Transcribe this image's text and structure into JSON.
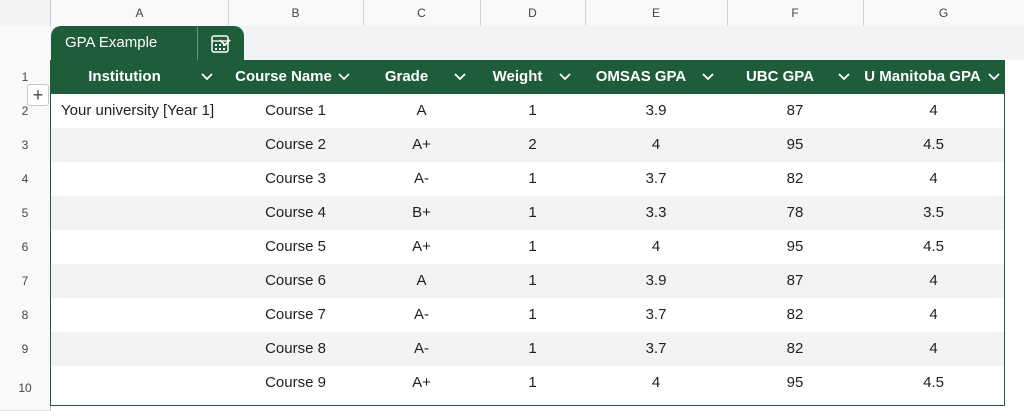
{
  "columns": [
    "A",
    "B",
    "C",
    "D",
    "E",
    "F",
    "G"
  ],
  "table": {
    "name": "GPA Example",
    "headers": [
      "Institution",
      "Course Name",
      "Grade",
      "Weight",
      "OMSAS GPA",
      "UBC GPA",
      "U Manitoba GPA"
    ],
    "rows": [
      [
        "Your university [Year 1]",
        "Course 1",
        "A",
        "1",
        "3.9",
        "87",
        "4"
      ],
      [
        "",
        "Course 2",
        "A+",
        "2",
        "4",
        "95",
        "4.5"
      ],
      [
        "",
        "Course 3",
        "A-",
        "1",
        "3.7",
        "82",
        "4"
      ],
      [
        "",
        "Course 4",
        "B+",
        "1",
        "3.3",
        "78",
        "3.5"
      ],
      [
        "",
        "Course 5",
        "A+",
        "1",
        "4",
        "95",
        "4.5"
      ],
      [
        "",
        "Course 6",
        "A",
        "1",
        "3.9",
        "87",
        "4"
      ],
      [
        "",
        "Course 7",
        "A-",
        "1",
        "3.7",
        "82",
        "4"
      ],
      [
        "",
        "Course 8",
        "A-",
        "1",
        "3.7",
        "82",
        "4"
      ],
      [
        "",
        "Course 9",
        "A+",
        "1",
        "4",
        "95",
        "4.5"
      ]
    ]
  },
  "row_numbers": [
    "1",
    "2",
    "3",
    "4",
    "5",
    "6",
    "7",
    "8",
    "9",
    "10"
  ],
  "add_label": "+",
  "colors": {
    "table_header": "#1e5c3a",
    "alt_row": "#f2f4f3",
    "grid_header": "#f8f9fa"
  },
  "icons": {
    "tab_menu": "chevron-down-icon",
    "table_tools": "calculator-icon",
    "column_menu": "chevron-down-icon"
  }
}
